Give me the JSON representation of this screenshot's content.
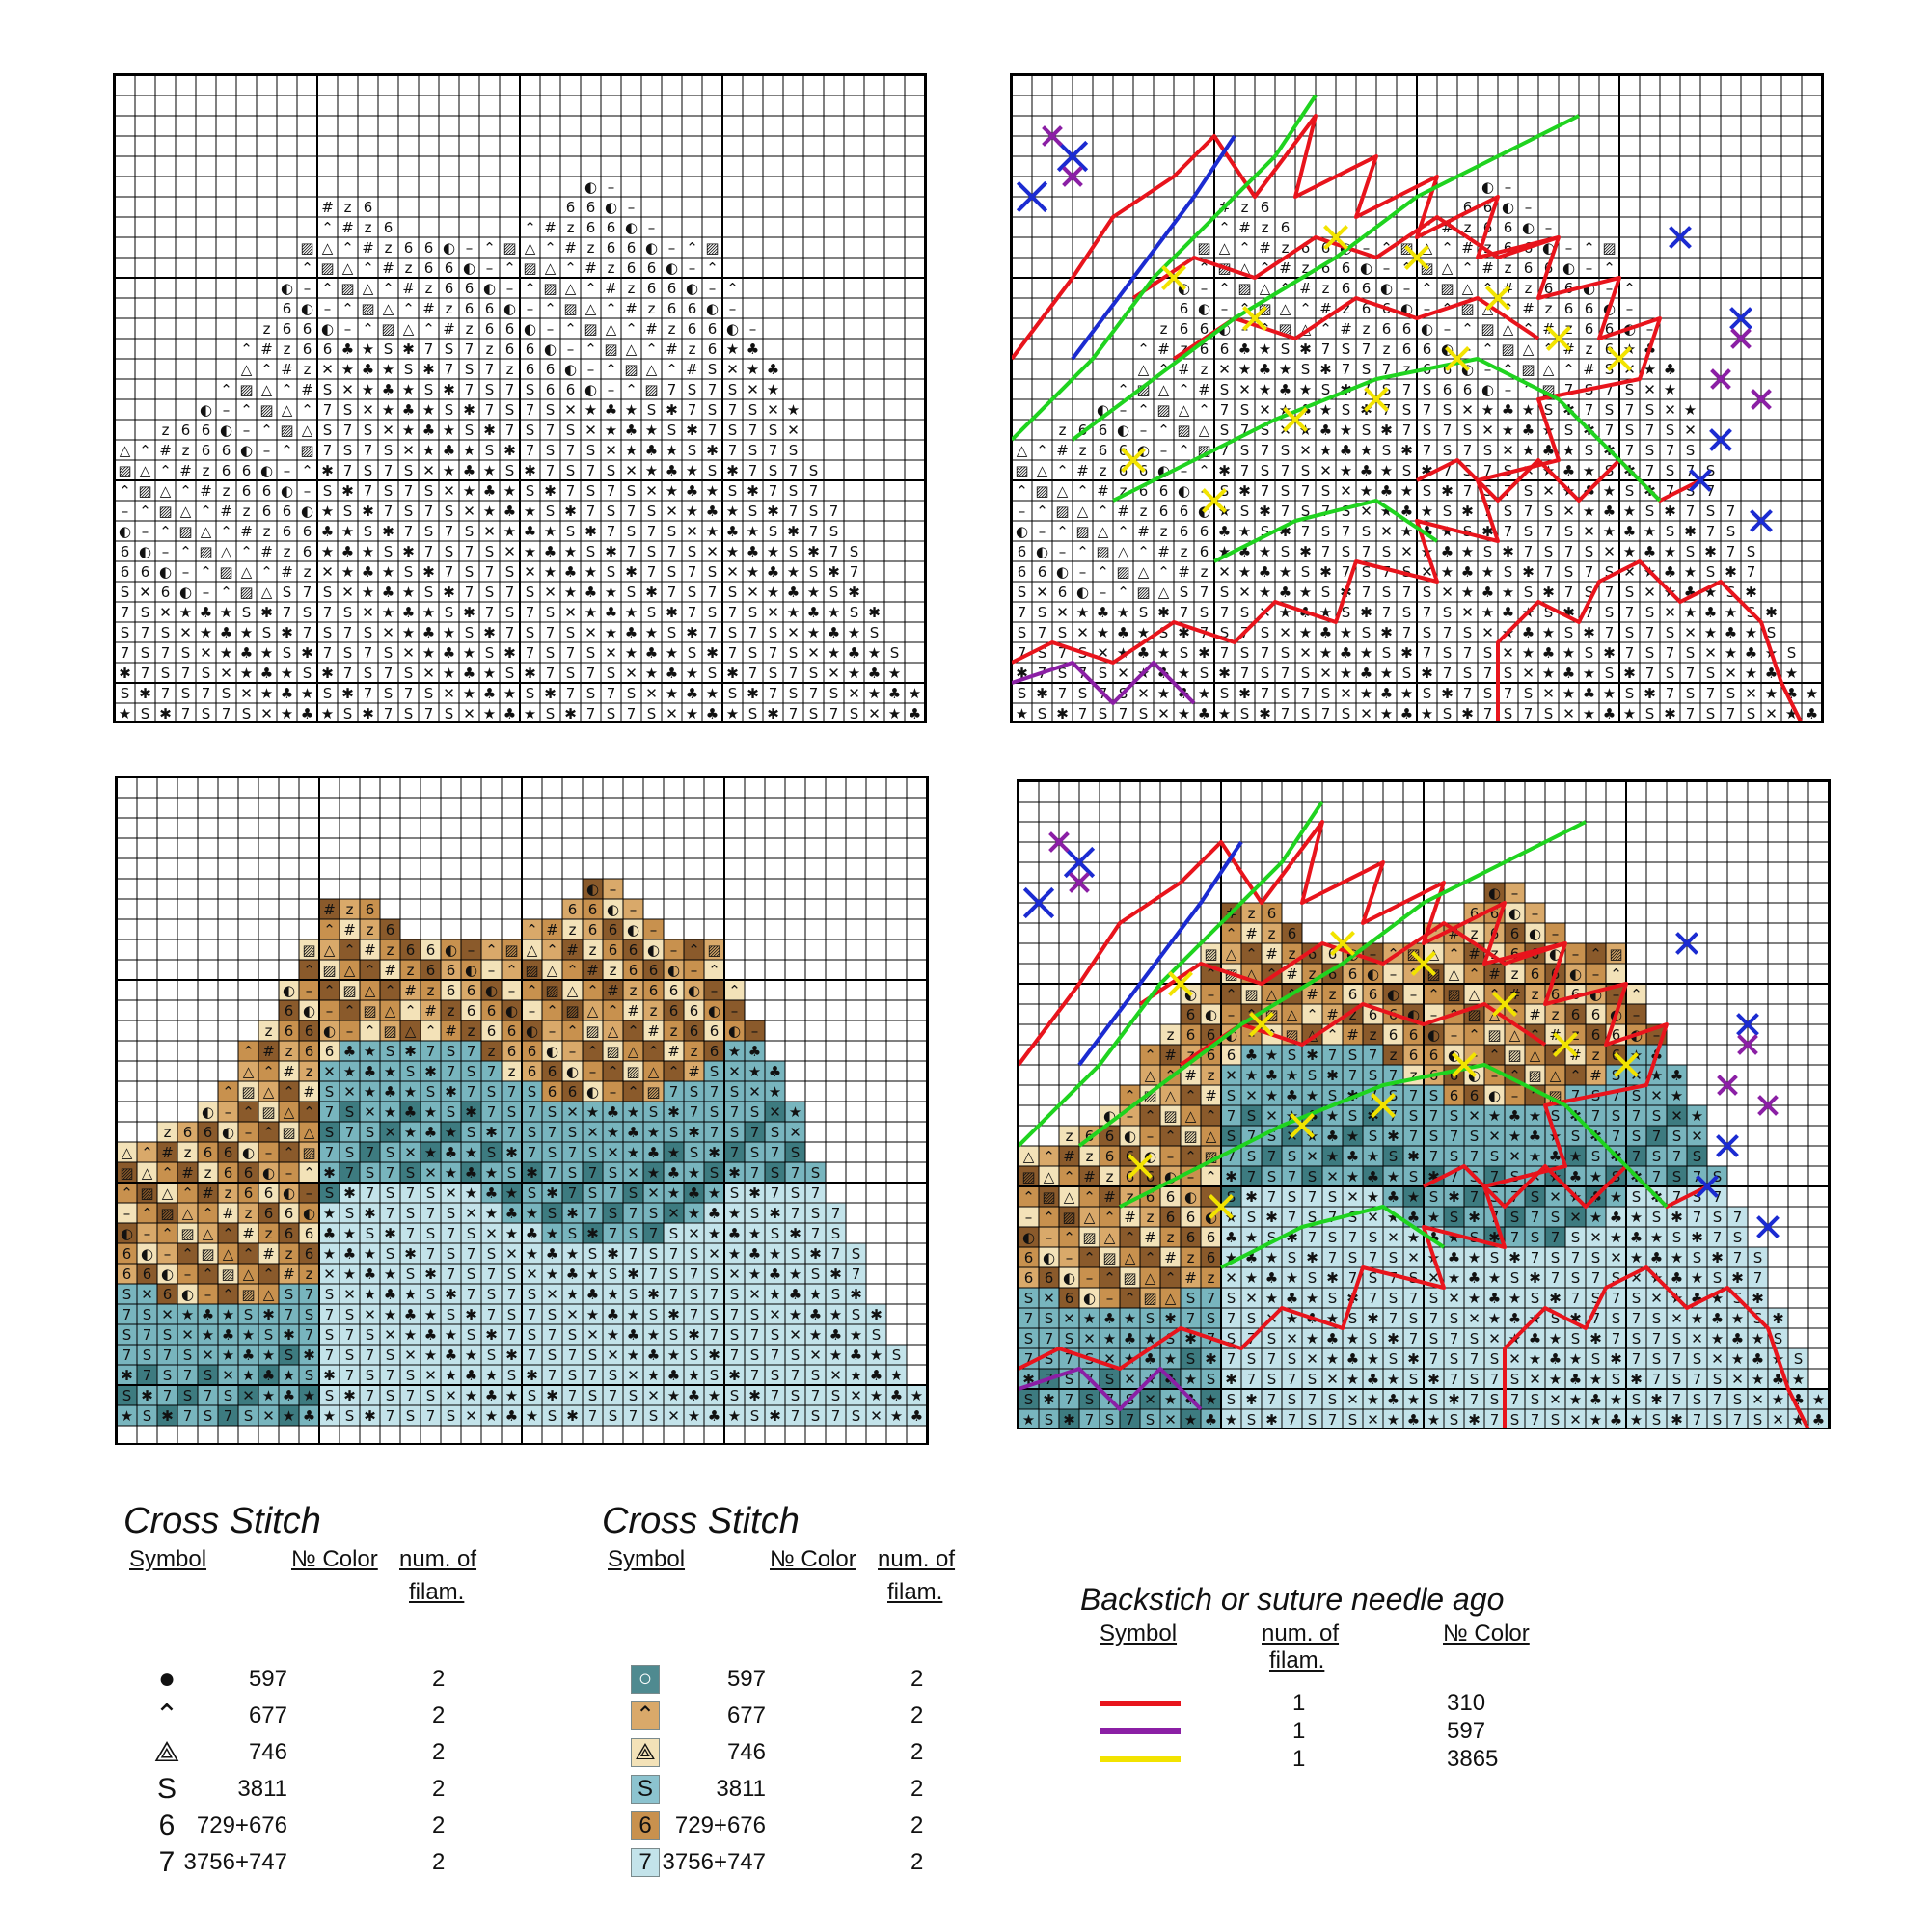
{
  "legend_left": {
    "title": "Cross Stitch",
    "header_symbol": "Symbol",
    "header_color": "№ Color",
    "header_filaments_1": "num. of",
    "header_filaments_2": "filam.",
    "rows": [
      {
        "symbol": "●",
        "icon": "filled-circle-icon",
        "color": "597",
        "filaments": "2"
      },
      {
        "symbol": "⌃",
        "icon": "caret-up-icon",
        "color": "677",
        "filaments": "2"
      },
      {
        "symbol": "⟁",
        "icon": "triangle-hatched-icon",
        "color": "746",
        "filaments": "2"
      },
      {
        "symbol": "S",
        "icon": "letter-s-icon",
        "color": "3811",
        "filaments": "2"
      },
      {
        "symbol": "6",
        "icon": "digit-6-icon",
        "color": "729+676",
        "filaments": "2"
      },
      {
        "symbol": "7",
        "icon": "digit-7-icon",
        "color": "3756+747",
        "filaments": "2"
      }
    ]
  },
  "legend_right": {
    "title": "Cross Stitch",
    "header_symbol": "Symbol",
    "header_color": "№ Color",
    "header_filaments_1": "num. of",
    "header_filaments_2": "filam.",
    "rows": [
      {
        "symbol": "○",
        "icon": "circle-swatch-icon",
        "swatch": "#4f8a90",
        "color": "597",
        "filaments": "2"
      },
      {
        "symbol": "⌃",
        "icon": "caret-swatch-icon",
        "swatch": "#d9a96a",
        "color": "677",
        "filaments": "2"
      },
      {
        "symbol": "⟁",
        "icon": "triangle-swatch-icon",
        "swatch": "#f3e2b8",
        "color": "746",
        "filaments": "2"
      },
      {
        "symbol": "S",
        "icon": "s-swatch-icon",
        "swatch": "#8cc3cf",
        "color": "3811",
        "filaments": "2"
      },
      {
        "symbol": "6",
        "icon": "six-swatch-icon",
        "swatch": "#c8914e",
        "color": "729+676",
        "filaments": "2"
      },
      {
        "symbol": "7",
        "icon": "seven-swatch-icon",
        "swatch": "#c3e3ea",
        "color": "3756+747",
        "filaments": "2"
      }
    ]
  },
  "backstitch": {
    "title": "Backstich or suture needle ago",
    "header_symbol": "Symbol",
    "header_filaments_1": "num. of",
    "header_filaments_2": "filam.",
    "header_color": "№ Color",
    "rows": [
      {
        "line_color": "#e8141c",
        "filaments": "1",
        "color": "310"
      },
      {
        "line_color": "#8b1fa5",
        "filaments": "1",
        "color": "597"
      },
      {
        "line_color": "#f2e300",
        "filaments": "1",
        "color": "3865"
      }
    ]
  },
  "palette": {
    "dark_brown": "#8a5a2b",
    "mid_brown": "#c8914e",
    "light_brown": "#d9a96a",
    "cream": "#f3e2b8",
    "teal_dark": "#3d7b80",
    "teal_mid": "#78b5be",
    "teal_light": "#c3e3ea",
    "backstitch_red": "#e8141c",
    "backstitch_green": "#1fd31f",
    "backstitch_yellow": "#f2e300",
    "backstitch_blue": "#1b2bd1",
    "backstitch_purple": "#8b1fa5"
  }
}
